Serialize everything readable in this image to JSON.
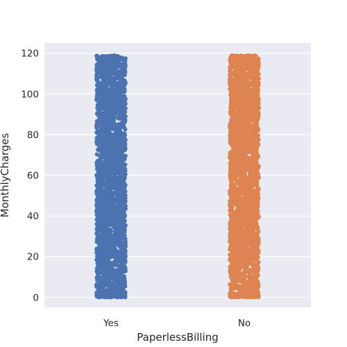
{
  "chart_data": {
    "type": "scatter",
    "style": "strip",
    "categories": [
      "Yes",
      "No"
    ],
    "series": [
      {
        "category": "Yes",
        "color": "#4c72b0",
        "value_range": [
          0,
          119
        ],
        "dense_range": [
          18,
          119
        ]
      },
      {
        "category": "No",
        "color": "#dd8452",
        "value_range": [
          0,
          119
        ],
        "dense_range": [
          18,
          119
        ]
      }
    ],
    "xlabel": "PaperlessBilling",
    "ylabel": "MonthlyCharges",
    "ylim": [
      -5,
      125
    ],
    "yticks": [
      0,
      20,
      40,
      60,
      80,
      100,
      120
    ],
    "grid": true,
    "background": "#eaeaf2"
  }
}
